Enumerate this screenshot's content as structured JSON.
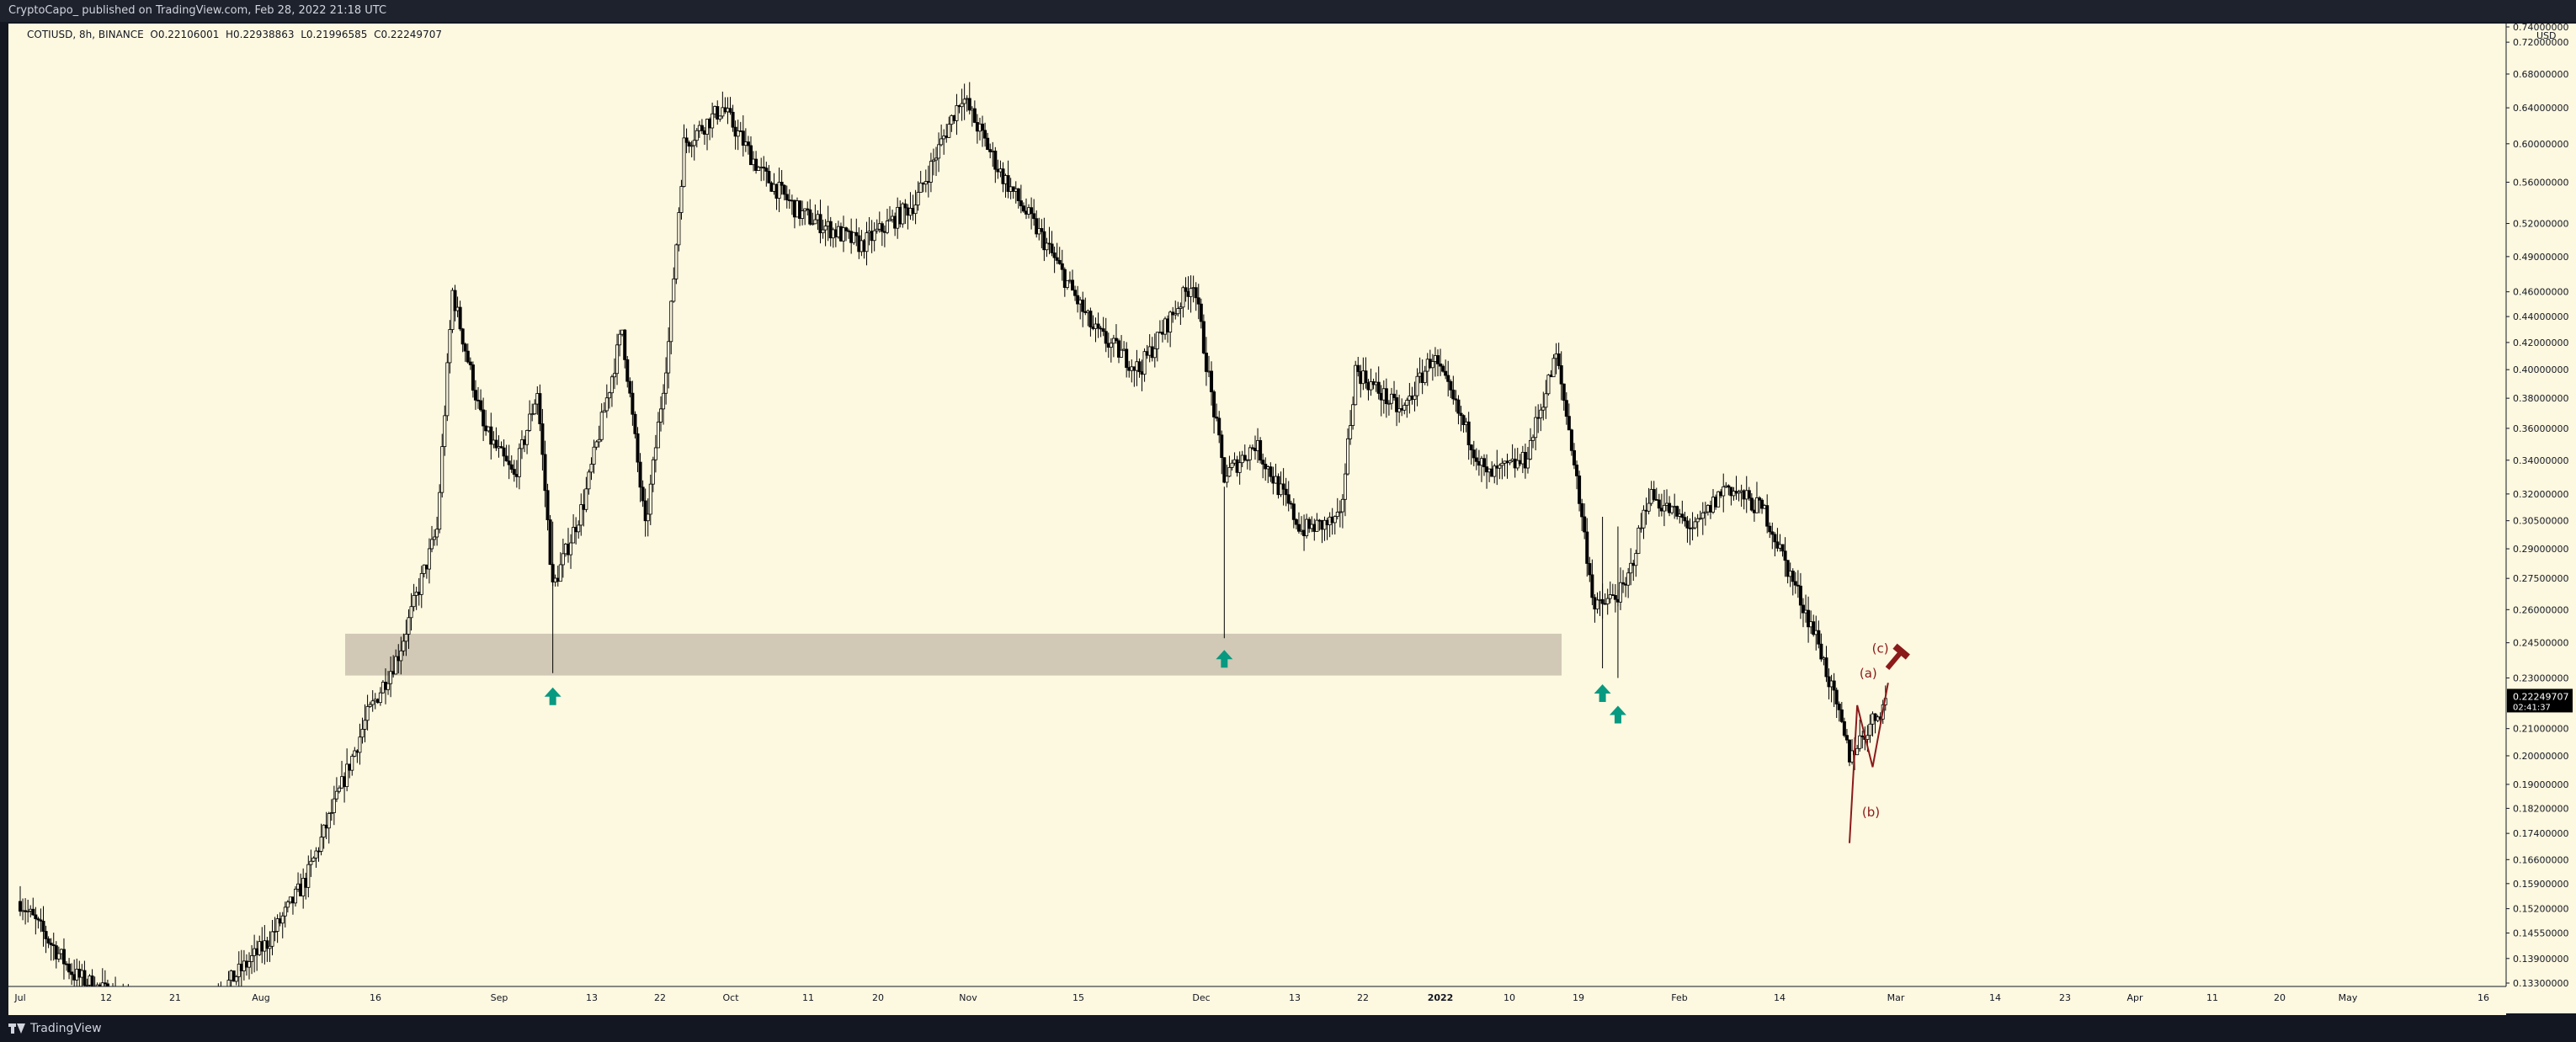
{
  "header": {
    "publisher_text": "CryptoCapo_ published on TradingView.com, Feb 28, 2022 21:18 UTC"
  },
  "footer": {
    "brand": "TradingView"
  },
  "legend": {
    "symbol_text": "COTIUSD, 8h, BINANCE",
    "open_text": "O0.22106001",
    "high_text": "H0.22938863",
    "low_text": "L0.21996585",
    "close_text": "C0.22249707"
  },
  "chart_data": {
    "type": "candlestick",
    "symbol": "COTIUSD",
    "interval": "8h",
    "exchange": "BINANCE",
    "currency_label": "USD",
    "y_axis": {
      "scale": "log",
      "range": [
        0.13,
        0.76
      ],
      "ticks": [
        "0.74000000",
        "0.72000000",
        "0.68000000",
        "0.64000000",
        "0.60000000",
        "0.56000000",
        "0.52000000",
        "0.49000000",
        "0.46000000",
        "0.44000000",
        "0.42000000",
        "0.40000000",
        "0.38000000",
        "0.36000000",
        "0.34000000",
        "0.32000000",
        "0.30500000",
        "0.29000000",
        "0.27500000",
        "0.26000000",
        "0.24500000",
        "0.23000000",
        "0.21000000",
        "0.20000000",
        "0.19000000",
        "0.18200000",
        "0.17400000",
        "0.16600000",
        "0.15900000",
        "0.15200000",
        "0.14550000",
        "0.13900000",
        "0.13300000"
      ]
    },
    "x_axis": {
      "ticks": [
        "Jul",
        "12",
        "21",
        "Aug",
        "16",
        "Sep",
        "13",
        "22",
        "Oct",
        "11",
        "20",
        "Nov",
        "15",
        "Dec",
        "13",
        "22",
        "2022",
        "10",
        "19",
        "Feb",
        "14",
        "Mar",
        "14",
        "23",
        "Apr",
        "11",
        "20",
        "May",
        "16"
      ]
    },
    "price_tag": {
      "value": "0.22249707",
      "countdown": "02:41:37"
    },
    "support_zone": {
      "low": 0.231,
      "high": 0.249
    },
    "bounce_points": [
      {
        "date": "2021-09-08",
        "low": 0.232
      },
      {
        "date": "2021-12-04",
        "low": 0.247
      },
      {
        "date": "2022-01-22",
        "low": 0.234
      },
      {
        "date": "2022-01-24",
        "low": 0.23
      }
    ],
    "wave_labels": [
      {
        "label": "(a)",
        "date": "2022-02-25",
        "value": 0.226
      },
      {
        "label": "(b)",
        "date": "2022-02-26",
        "value": 0.19
      },
      {
        "label": "(c)",
        "date": "2022-02-27",
        "value": 0.232
      }
    ],
    "wave_path": [
      {
        "date": "2022-02-23",
        "value": 0.171
      },
      {
        "date": "2022-02-24",
        "value": 0.219
      },
      {
        "date": "2022-02-26",
        "value": 0.196
      },
      {
        "date": "2022-02-28",
        "value": 0.228
      }
    ],
    "path_summary": [
      {
        "date": "2021-07-01",
        "value": 0.154
      },
      {
        "date": "2021-07-08",
        "value": 0.135
      },
      {
        "date": "2021-07-15",
        "value": 0.128
      },
      {
        "date": "2021-07-23",
        "value": 0.125
      },
      {
        "date": "2021-07-28",
        "value": 0.133
      },
      {
        "date": "2021-08-02",
        "value": 0.143
      },
      {
        "date": "2021-08-07",
        "value": 0.16
      },
      {
        "date": "2021-08-11",
        "value": 0.185
      },
      {
        "date": "2021-08-15",
        "value": 0.215
      },
      {
        "date": "2021-08-19",
        "value": 0.24
      },
      {
        "date": "2021-08-24",
        "value": 0.3
      },
      {
        "date": "2021-08-26",
        "value": 0.46
      },
      {
        "date": "2021-08-30",
        "value": 0.36
      },
      {
        "date": "2021-09-03",
        "value": 0.33
      },
      {
        "date": "2021-09-06",
        "value": 0.385
      },
      {
        "date": "2021-09-08",
        "value": 0.27
      },
      {
        "date": "2021-09-12",
        "value": 0.315
      },
      {
        "date": "2021-09-17",
        "value": 0.43
      },
      {
        "date": "2021-09-20",
        "value": 0.3
      },
      {
        "date": "2021-09-23",
        "value": 0.42
      },
      {
        "date": "2021-09-25",
        "value": 0.6
      },
      {
        "date": "2021-09-30",
        "value": 0.64
      },
      {
        "date": "2021-10-05",
        "value": 0.57
      },
      {
        "date": "2021-10-10",
        "value": 0.53
      },
      {
        "date": "2021-10-18",
        "value": 0.5
      },
      {
        "date": "2021-10-25",
        "value": 0.54
      },
      {
        "date": "2021-10-31",
        "value": 0.655
      },
      {
        "date": "2021-11-05",
        "value": 0.57
      },
      {
        "date": "2021-11-11",
        "value": 0.5
      },
      {
        "date": "2021-11-17",
        "value": 0.43
      },
      {
        "date": "2021-11-23",
        "value": 0.4
      },
      {
        "date": "2021-11-30",
        "value": 0.47
      },
      {
        "date": "2021-12-04",
        "value": 0.33
      },
      {
        "date": "2021-12-08",
        "value": 0.35
      },
      {
        "date": "2021-12-14",
        "value": 0.3
      },
      {
        "date": "2021-12-19",
        "value": 0.305
      },
      {
        "date": "2021-12-21",
        "value": 0.4
      },
      {
        "date": "2021-12-27",
        "value": 0.37
      },
      {
        "date": "2021-12-31",
        "value": 0.41
      },
      {
        "date": "2022-01-07",
        "value": 0.33
      },
      {
        "date": "2022-01-12",
        "value": 0.34
      },
      {
        "date": "2022-01-16",
        "value": 0.41
      },
      {
        "date": "2022-01-18",
        "value": 0.35
      },
      {
        "date": "2022-01-21",
        "value": 0.26
      },
      {
        "date": "2022-01-25",
        "value": 0.27
      },
      {
        "date": "2022-01-28",
        "value": 0.32
      },
      {
        "date": "2022-02-03",
        "value": 0.3
      },
      {
        "date": "2022-02-07",
        "value": 0.325
      },
      {
        "date": "2022-02-12",
        "value": 0.31
      },
      {
        "date": "2022-02-15",
        "value": 0.28
      },
      {
        "date": "2022-02-19",
        "value": 0.245
      },
      {
        "date": "2022-02-23",
        "value": 0.2
      },
      {
        "date": "2022-02-28",
        "value": 0.222
      }
    ]
  },
  "colors": {
    "chart_bg": "#fdf8e0",
    "frame": "#131722",
    "candle_up": "#fdf8e0",
    "candle_down": "#000000",
    "wick": "#000000",
    "zone_fill": "#d1c9b5",
    "arrow_up": "#089981",
    "wave_red": "#8b1a1a",
    "label_bg": "#000000",
    "label_text": "#ffffff"
  }
}
